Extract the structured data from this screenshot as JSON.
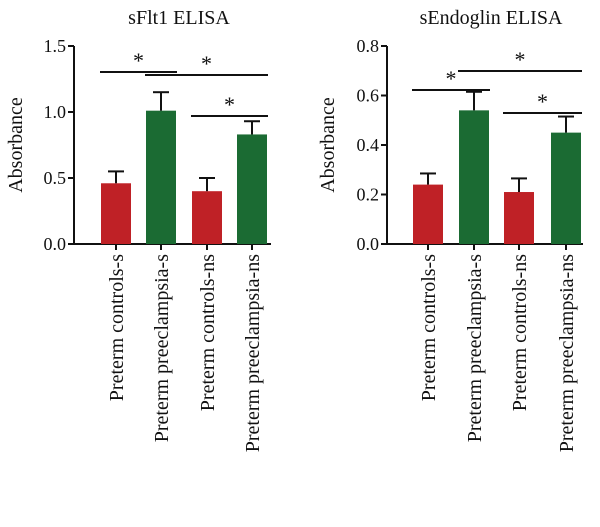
{
  "colors": {
    "control": "#bf2126",
    "preeclampsia": "#1b6b33",
    "ink": "#111111"
  },
  "chart_data": [
    {
      "type": "bar",
      "title": "sFlt1 ELISA",
      "ylabel": "Absorbance",
      "ylim": [
        0,
        1.5
      ],
      "yticks": [
        "0.0",
        "0.5",
        "1.0",
        "1.5"
      ],
      "categories": [
        "Preterm controls-s",
        "Preterm preeclampsia-s",
        "Preterm controls-ns",
        "Preterm preeclampsia-ns"
      ],
      "values": [
        0.46,
        1.01,
        0.4,
        0.83
      ],
      "errors": [
        0.09,
        0.14,
        0.1,
        0.1
      ],
      "bar_colors": [
        "control",
        "preeclampsia",
        "control",
        "preeclampsia"
      ],
      "significance": [
        {
          "from": 0,
          "to": 1,
          "label": "*"
        },
        {
          "from": 1,
          "to": 3,
          "label": "*"
        },
        {
          "from": 2,
          "to": 3,
          "label": "*"
        }
      ]
    },
    {
      "type": "bar",
      "title": "sEndoglin ELISA",
      "ylabel": "Absorbance",
      "ylim": [
        0,
        0.8
      ],
      "yticks": [
        "0.0",
        "0.2",
        "0.4",
        "0.6",
        "0.8"
      ],
      "categories": [
        "Preterm controls-s",
        "Preterm preeclampsia-s",
        "Preterm controls-ns",
        "Preterm preeclampsia-ns"
      ],
      "values": [
        0.24,
        0.54,
        0.21,
        0.45
      ],
      "errors": [
        0.045,
        0.075,
        0.055,
        0.065
      ],
      "bar_colors": [
        "control",
        "preeclampsia",
        "control",
        "preeclampsia"
      ],
      "significance": [
        {
          "from": 0,
          "to": 1,
          "label": "*"
        },
        {
          "from": 1,
          "to": 3,
          "label": "*"
        },
        {
          "from": 2,
          "to": 3,
          "label": "*"
        }
      ]
    }
  ]
}
